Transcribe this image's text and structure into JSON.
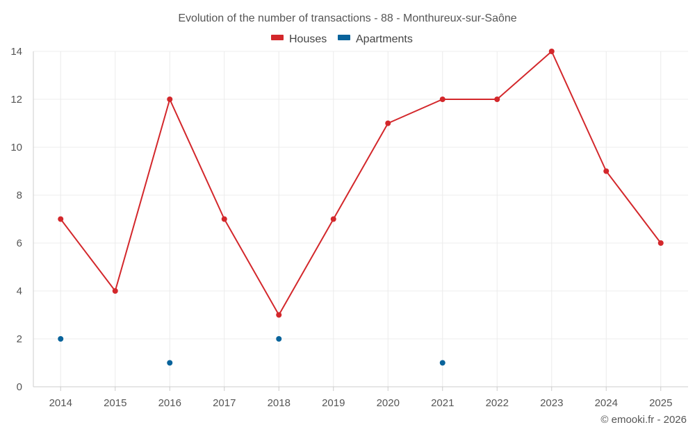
{
  "chart_data": {
    "type": "line",
    "title": "Evolution of the number of transactions - 88 - Monthureux-sur-Saône",
    "categories": [
      "2014",
      "2015",
      "2016",
      "2017",
      "2018",
      "2019",
      "2020",
      "2021",
      "2022",
      "2023",
      "2024",
      "2025"
    ],
    "ylim": [
      0,
      14
    ],
    "yticks": [
      0,
      2,
      4,
      6,
      8,
      10,
      12,
      14
    ],
    "series": [
      {
        "name": "Houses",
        "color": "#d3272b",
        "mode": "line",
        "values": [
          7,
          4,
          12,
          7,
          3,
          7,
          11,
          12,
          12,
          14,
          9,
          6
        ]
      },
      {
        "name": "Apartments",
        "color": "#08639b",
        "mode": "points",
        "values": [
          2,
          null,
          1,
          null,
          2,
          null,
          null,
          1,
          null,
          null,
          null,
          null
        ]
      }
    ],
    "legend_position": "top-center",
    "grid": true
  },
  "credit": "© emooki.fr - 2026"
}
